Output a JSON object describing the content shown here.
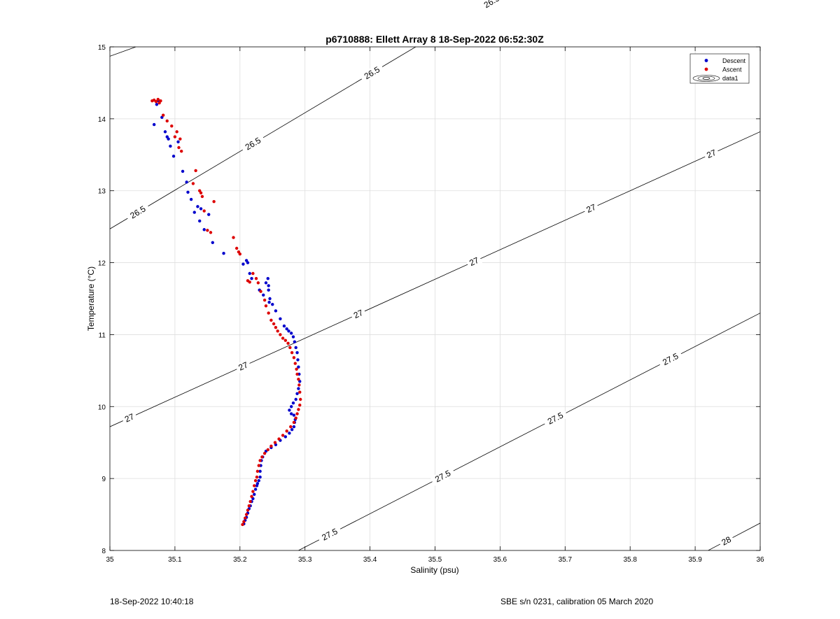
{
  "footer": {
    "left": "18-Sep-2022 10:40:18",
    "right": "SBE s/n 0231, calibration 05 March 2020"
  },
  "chart_data": {
    "type": "scatter",
    "title": "p6710888: Ellett Array 8 18-Sep-2022 06:52:30Z",
    "xlabel": "Salinity (psu)",
    "ylabel": "Temperature (°C)",
    "xlim": [
      35,
      36
    ],
    "ylim": [
      8,
      15
    ],
    "xticks": [
      "35",
      "35.1",
      "35.2",
      "35.3",
      "35.4",
      "35.5",
      "35.6",
      "35.7",
      "35.8",
      "35.9",
      "36"
    ],
    "yticks": [
      "8",
      "9",
      "10",
      "11",
      "12",
      "13",
      "14",
      "15"
    ],
    "grid": true,
    "legend": {
      "placement": "top-right",
      "entries": [
        "Descent",
        "Ascent",
        "data1"
      ]
    },
    "colors": {
      "descent": "#0000cc",
      "ascent": "#dd0000",
      "contour": "#000000",
      "grid": "#dedede"
    },
    "contours": [
      {
        "level": 26.5,
        "label": "26.5",
        "points": [
          [
            35.0,
            12.47
          ],
          [
            36.0,
            17.85
          ]
        ],
        "label_at": [
          35.043,
          35.22,
          35.403,
          35.587
        ]
      },
      {
        "level": 26.5,
        "label": "",
        "points": [
          [
            35.0,
            14.87
          ],
          [
            35.04,
            15.0
          ]
        ],
        "label_at": []
      },
      {
        "level": 27,
        "label": "27",
        "points": [
          [
            35.0,
            9.72
          ],
          [
            36.0,
            13.82
          ]
        ],
        "label_at": [
          35.03,
          35.205,
          35.382,
          35.56,
          35.74,
          35.925
        ]
      },
      {
        "level": 27.5,
        "label": "27.5",
        "points": [
          [
            35.29,
            8.0
          ],
          [
            36.0,
            11.3
          ]
        ],
        "label_at": [
          35.338,
          35.512,
          35.685,
          35.862
        ]
      },
      {
        "level": 28,
        "label": "28",
        "points": [
          [
            35.92,
            8.0
          ],
          [
            36.0,
            8.38
          ]
        ],
        "label_at": [
          35.948
        ]
      }
    ],
    "series": [
      {
        "name": "Descent",
        "x": [
          35.068,
          35.072,
          35.075,
          35.08,
          35.085,
          35.088,
          35.09,
          35.093,
          35.098,
          35.105,
          35.112,
          35.118,
          35.12,
          35.125,
          35.13,
          35.135,
          35.138,
          35.14,
          35.145,
          35.152,
          35.158,
          35.175,
          35.205,
          35.21,
          35.212,
          35.215,
          35.218,
          35.23,
          35.236,
          35.24,
          35.243,
          35.244,
          35.245,
          35.244,
          35.246,
          35.25,
          35.255,
          35.262,
          35.268,
          35.272,
          35.275,
          35.279,
          35.282,
          35.284,
          35.286,
          35.288,
          35.289,
          35.29,
          35.291,
          35.292,
          35.29,
          35.288,
          35.286,
          35.282,
          35.279,
          35.276,
          35.279,
          35.283,
          35.285,
          35.284,
          35.283,
          35.28,
          35.276,
          35.27,
          35.262,
          35.255,
          35.248,
          35.24,
          35.235,
          35.233,
          35.232,
          35.231,
          35.231,
          35.229,
          35.227,
          35.226,
          35.224,
          35.222,
          35.22,
          35.218,
          35.216,
          35.214,
          35.212,
          35.21,
          35.208,
          35.206
        ],
        "y": [
          13.92,
          14.2,
          14.25,
          14.02,
          13.82,
          13.75,
          13.72,
          13.62,
          13.48,
          13.68,
          13.27,
          13.12,
          12.98,
          12.88,
          12.7,
          12.78,
          12.58,
          12.75,
          12.46,
          12.67,
          12.28,
          12.13,
          11.98,
          12.03,
          12.0,
          11.85,
          11.78,
          11.62,
          11.55,
          11.72,
          11.78,
          11.68,
          11.45,
          11.62,
          11.5,
          11.42,
          11.33,
          11.22,
          11.12,
          11.08,
          11.05,
          11.02,
          10.97,
          10.9,
          10.82,
          10.75,
          10.65,
          10.55,
          10.45,
          10.35,
          10.25,
          10.18,
          10.1,
          10.05,
          10.0,
          9.95,
          9.9,
          9.88,
          9.82,
          9.78,
          9.72,
          9.68,
          9.63,
          9.58,
          9.53,
          9.47,
          9.43,
          9.38,
          9.3,
          9.25,
          9.18,
          9.1,
          9.02,
          8.97,
          8.93,
          8.9,
          8.85,
          8.78,
          8.72,
          8.68,
          8.62,
          8.58,
          8.52,
          8.46,
          8.42,
          8.37
        ]
      },
      {
        "name": "Ascent",
        "x": [
          35.065,
          35.068,
          35.071,
          35.074,
          35.076,
          35.078,
          35.082,
          35.088,
          35.095,
          35.1,
          35.103,
          35.106,
          35.108,
          35.11,
          35.128,
          35.132,
          35.138,
          35.14,
          35.142,
          35.145,
          35.15,
          35.155,
          35.16,
          35.19,
          35.195,
          35.198,
          35.2,
          35.212,
          35.215,
          35.22,
          35.225,
          35.228,
          35.232,
          35.238,
          35.24,
          35.244,
          35.248,
          35.252,
          35.255,
          35.258,
          35.262,
          35.266,
          35.27,
          35.274,
          35.277,
          35.28,
          35.283,
          35.285,
          35.287,
          35.288,
          35.29,
          35.291,
          35.292,
          35.293,
          35.292,
          35.29,
          35.288,
          35.286,
          35.283,
          35.278,
          35.272,
          35.266,
          35.26,
          35.254,
          35.248,
          35.243,
          35.238,
          35.234,
          35.231,
          35.229,
          35.227,
          35.226,
          35.224,
          35.222,
          35.22,
          35.218,
          35.216,
          35.214,
          35.212,
          35.21,
          35.208,
          35.206,
          35.204
        ],
        "y": [
          14.25,
          14.26,
          14.24,
          14.27,
          14.22,
          14.25,
          14.05,
          13.97,
          13.9,
          13.75,
          13.82,
          13.6,
          13.72,
          13.55,
          13.1,
          13.28,
          13.0,
          12.97,
          12.92,
          12.72,
          12.45,
          12.42,
          12.85,
          12.35,
          12.2,
          12.15,
          12.12,
          11.75,
          11.73,
          11.85,
          11.78,
          11.72,
          11.6,
          11.48,
          11.4,
          11.3,
          11.2,
          11.15,
          11.1,
          11.05,
          11.0,
          10.95,
          10.92,
          10.88,
          10.82,
          10.75,
          10.68,
          10.6,
          10.52,
          10.45,
          10.38,
          10.3,
          10.2,
          10.1,
          10.02,
          9.96,
          9.9,
          9.84,
          9.78,
          9.72,
          9.66,
          9.6,
          9.55,
          9.5,
          9.45,
          9.4,
          9.35,
          9.3,
          9.25,
          9.18,
          9.1,
          9.02,
          8.97,
          8.9,
          8.82,
          8.75,
          8.68,
          8.62,
          8.56,
          8.5,
          8.45,
          8.4,
          8.36
        ]
      }
    ]
  }
}
